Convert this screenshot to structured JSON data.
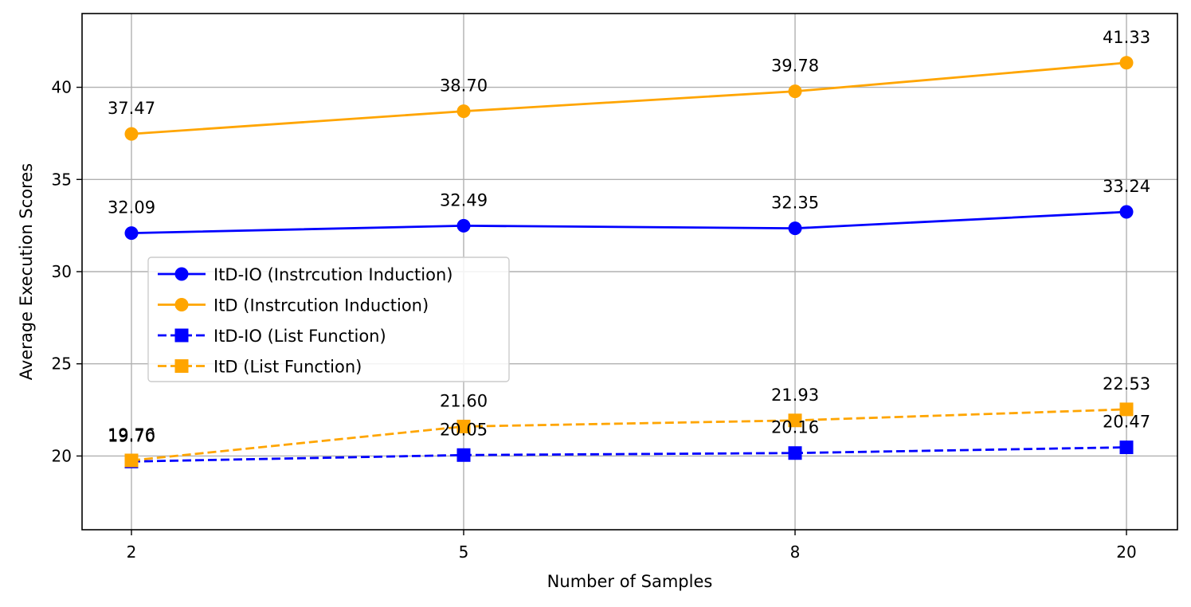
{
  "chart_data": {
    "type": "line",
    "xlabel": "Number of Samples",
    "ylabel": "Average Execution Scores",
    "categories": [
      "2",
      "5",
      "8",
      "20"
    ],
    "ylim": [
      16,
      44
    ],
    "yticks": [
      20,
      25,
      30,
      35,
      40
    ],
    "grid": true,
    "legend_position": "center-left",
    "series": [
      {
        "name": "ItD-IO (Instrcution Induction)",
        "values": [
          32.09,
          32.49,
          32.35,
          33.24
        ],
        "labels": [
          "32.09",
          "32.49",
          "32.35",
          "33.24"
        ],
        "color": "#0000ff",
        "marker": "circle",
        "linestyle": "solid"
      },
      {
        "name": "ItD (Instrcution Induction)",
        "values": [
          37.47,
          38.7,
          39.78,
          41.33
        ],
        "labels": [
          "37.47",
          "38.70",
          "39.78",
          "41.33"
        ],
        "color": "#ffa500",
        "marker": "circle",
        "linestyle": "solid"
      },
      {
        "name": "ItD-IO (List Function)",
        "values": [
          19.7,
          20.05,
          20.16,
          20.47
        ],
        "labels": [
          "19.70",
          "20.05",
          "20.16",
          "20.47"
        ],
        "color": "#0000ff",
        "marker": "square",
        "linestyle": "dashed"
      },
      {
        "name": "ItD (List Function)",
        "values": [
          19.76,
          21.6,
          21.93,
          22.53
        ],
        "labels": [
          "19.76",
          "21.60",
          "21.93",
          "22.53"
        ],
        "color": "#ffa500",
        "marker": "square",
        "linestyle": "dashed"
      }
    ]
  }
}
